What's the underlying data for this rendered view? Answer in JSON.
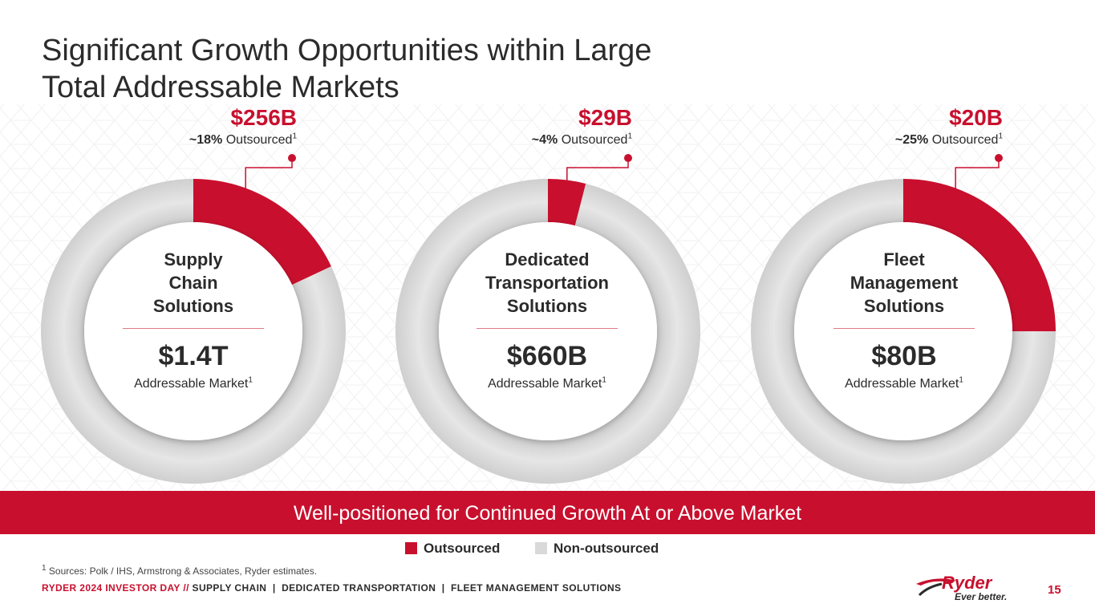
{
  "title": {
    "line1": "Significant Growth Opportunities within Large",
    "line2": "Total Addressable Markets"
  },
  "colors": {
    "brand_red": "#c8102e",
    "non_outsourced_gray": "#d9d9d9",
    "text_dark": "#2b2b2b"
  },
  "chart_data": {
    "type": "pie",
    "variant": "donut",
    "title": "Significant Growth Opportunities within Large Total Addressable Markets",
    "legend": [
      "Outsourced",
      "Non-outsourced"
    ],
    "charts": [
      {
        "segment_lines": [
          "Supply",
          "Chain",
          "Solutions"
        ],
        "total_label": "$1.4T",
        "total_sub": "Addressable Market",
        "outsourced_value_label": "$256B",
        "outsourced_pct_value": "~18%",
        "outsourced_pct_word": "Outsourced",
        "slices": [
          {
            "label": "Outsourced",
            "value": 18
          },
          {
            "label": "Non-outsourced",
            "value": 82
          }
        ]
      },
      {
        "segment_lines": [
          "Dedicated",
          "Transportation",
          "Solutions"
        ],
        "total_label": "$660B",
        "total_sub": "Addressable Market",
        "outsourced_value_label": "$29B",
        "outsourced_pct_value": "~4%",
        "outsourced_pct_word": "Outsourced",
        "slices": [
          {
            "label": "Outsourced",
            "value": 4
          },
          {
            "label": "Non-outsourced",
            "value": 96
          }
        ]
      },
      {
        "segment_lines": [
          "Fleet",
          "Management",
          "Solutions"
        ],
        "total_label": "$80B",
        "total_sub": "Addressable Market",
        "outsourced_value_label": "$20B",
        "outsourced_pct_value": "~25%",
        "outsourced_pct_word": "Outsourced",
        "slices": [
          {
            "label": "Outsourced",
            "value": 25
          },
          {
            "label": "Non-outsourced",
            "value": 75
          }
        ]
      }
    ]
  },
  "footnote_marker": "1",
  "banner": "Well-positioned for Continued Growth At or Above Market",
  "legend": {
    "outsourced": "Outsourced",
    "non_outsourced": "Non-outsourced"
  },
  "footnote": {
    "marker": "1",
    "text": " Sources: Polk / IHS, Armstrong & Associates, Ryder estimates."
  },
  "footer": {
    "event": "RYDER 2024 INVESTOR DAY",
    "sep": " // ",
    "sections": "SUPPLY CHAIN  |  DEDICATED TRANSPORTATION  |  FLEET MANAGEMENT SOLUTIONS"
  },
  "logo": {
    "name": "Ryder",
    "tagline": "Ever better.",
    "icon": "ryder-logo-icon"
  },
  "page_number": "15"
}
